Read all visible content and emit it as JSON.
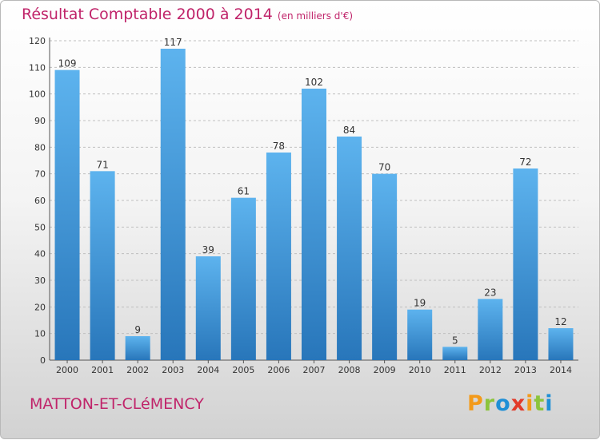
{
  "header": {
    "title": "Résultat Comptable 2000 à 2014",
    "subtitle": "(en milliers d'€)"
  },
  "footer": {
    "commune": "MATTON-ET-CLéMENCY",
    "brand": "Proxiti"
  },
  "colors": {
    "title": "#c0246a",
    "bar_top": "#5db3ee",
    "bar_bottom": "#2876ba",
    "grid": "#bfbfbf"
  },
  "chart_data": {
    "type": "bar",
    "title": "Résultat Comptable 2000 à 2014 (en milliers d'€)",
    "xlabel": "",
    "ylabel": "",
    "categories": [
      "2000",
      "2001",
      "2002",
      "2003",
      "2004",
      "2005",
      "2006",
      "2007",
      "2008",
      "2009",
      "2010",
      "2011",
      "2012",
      "2013",
      "2014"
    ],
    "values": [
      109,
      71,
      9,
      117,
      39,
      61,
      78,
      102,
      84,
      70,
      19,
      5,
      23,
      72,
      12
    ],
    "yticks": [
      0,
      10,
      20,
      30,
      40,
      50,
      60,
      70,
      80,
      90,
      100,
      110,
      120
    ],
    "ylim": [
      0,
      120
    ],
    "grid": true,
    "legend": "none"
  }
}
